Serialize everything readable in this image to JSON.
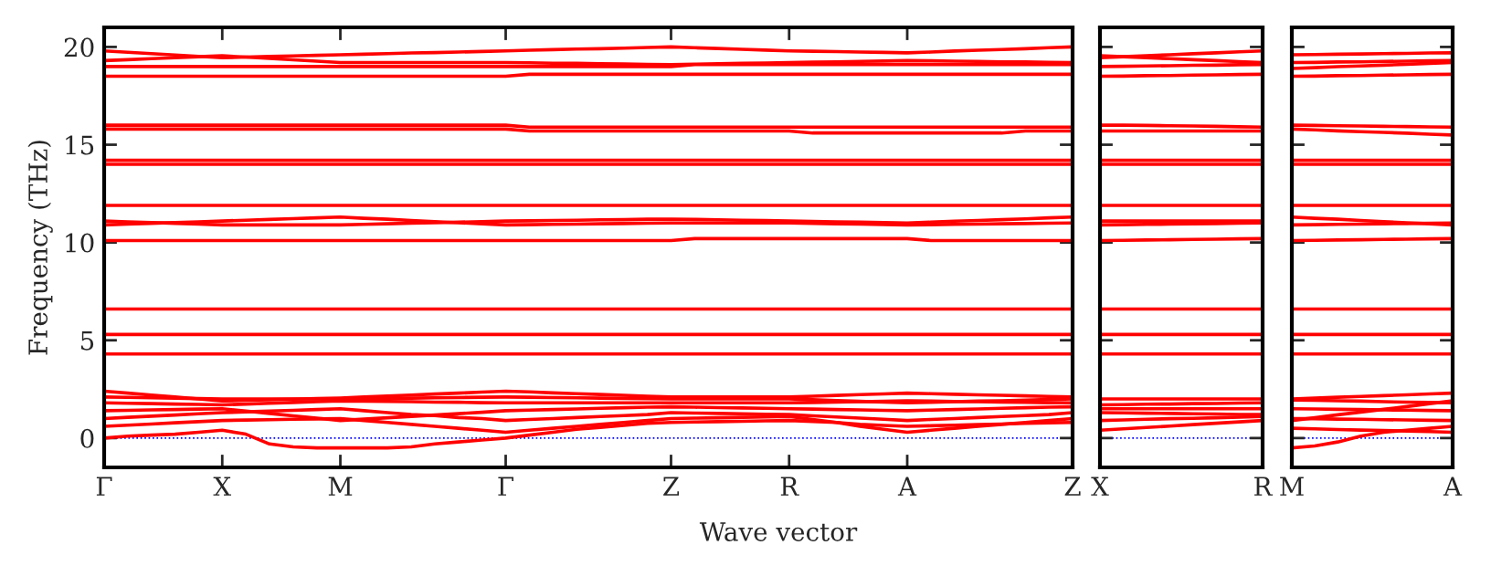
{
  "chart_data": [
    {
      "type": "line",
      "ylabel": "Frequency (THz)",
      "xlabel": "Wave vector",
      "categories": [
        "Γ",
        null,
        null,
        null,
        null,
        "X",
        null,
        null,
        null,
        null,
        "M",
        null,
        null,
        null,
        null,
        null,
        null,
        "Γ",
        null,
        null,
        null,
        null,
        null,
        null,
        "Z",
        null,
        null,
        null,
        null,
        "R",
        null,
        null,
        null,
        null,
        "A",
        null,
        null,
        null,
        null,
        null,
        null,
        "Z"
      ],
      "ylim": [
        -1.5,
        21
      ],
      "yticks": [
        0,
        5,
        10,
        15,
        20
      ],
      "ref_lines": [
        {
          "axis": "y",
          "value": 0,
          "color": "#0000ff",
          "line_style": "dotted"
        }
      ],
      "series": [
        {
          "color": "#ff0000",
          "values": [
            0,
            0.1,
            0.15,
            0.2,
            0.3,
            0.4,
            0.2,
            -0.3,
            -0.45,
            -0.5,
            -0.5,
            -0.5,
            -0.5,
            -0.45,
            -0.3,
            -0.2,
            -0.1,
            0,
            0.15,
            0.3,
            0.45,
            0.55,
            0.65,
            0.75,
            0.8,
            0.82,
            0.84,
            0.86,
            0.88,
            0.9,
            0.85,
            0.8,
            0.7,
            0.65,
            0.6,
            0.63,
            0.66,
            0.69,
            0.72,
            0.75,
            0.78,
            0.8
          ]
        },
        {
          "color": "#ff0000",
          "values": [
            0.6,
            0.66,
            0.72,
            0.78,
            0.84,
            0.9,
            0.92,
            0.94,
            0.96,
            0.98,
            1.0,
            0.9,
            0.8,
            0.7,
            0.6,
            0.5,
            0.4,
            0.3,
            0.4,
            0.5,
            0.6,
            0.7,
            0.8,
            0.9,
            1.0,
            1.02,
            1.04,
            1.06,
            1.08,
            1.1,
            0.95,
            0.8,
            0.6,
            0.45,
            0.3,
            0.4,
            0.5,
            0.6,
            0.7,
            0.8,
            0.9,
            1.0
          ]
        },
        {
          "color": "#ff0000",
          "values": [
            1.0,
            1.06,
            1.12,
            1.18,
            1.24,
            1.3,
            1.34,
            1.38,
            1.42,
            1.46,
            1.5,
            1.4,
            1.3,
            1.2,
            1.15,
            1.05,
            1.0,
            0.9,
            0.95,
            1.0,
            1.05,
            1.1,
            1.15,
            1.2,
            1.3,
            1.28,
            1.26,
            1.24,
            1.22,
            1.2,
            1.14,
            1.08,
            1.02,
            0.96,
            0.9,
            0.95,
            1.0,
            1.05,
            1.1,
            1.15,
            1.2,
            1.3
          ]
        },
        {
          "color": "#ff0000",
          "values": [
            1.4,
            1.42,
            1.44,
            1.46,
            1.48,
            1.5,
            1.38,
            1.26,
            1.14,
            1.02,
            0.9,
            0.97,
            1.04,
            1.11,
            1.18,
            1.25,
            1.32,
            1.4,
            1.43,
            1.46,
            1.49,
            1.52,
            1.55,
            1.58,
            1.6,
            1.58,
            1.56,
            1.54,
            1.52,
            1.5,
            1.48,
            1.46,
            1.44,
            1.42,
            1.4,
            1.43,
            1.46,
            1.49,
            1.52,
            1.55,
            1.58,
            1.6
          ]
        },
        {
          "color": "#ff0000",
          "values": [
            1.8,
            1.78,
            1.76,
            1.74,
            1.72,
            1.7,
            1.74,
            1.78,
            1.82,
            1.86,
            1.9,
            1.89,
            1.87,
            1.86,
            1.84,
            1.83,
            1.81,
            1.8,
            1.8,
            1.8,
            1.8,
            1.8,
            1.8,
            1.8,
            1.8,
            1.8,
            1.8,
            1.8,
            1.8,
            1.8,
            1.82,
            1.84,
            1.86,
            1.88,
            1.9,
            1.89,
            1.87,
            1.86,
            1.84,
            1.83,
            1.81,
            1.8
          ]
        },
        {
          "color": "#ff0000",
          "values": [
            2.1,
            2.08,
            2.06,
            2.04,
            2.02,
            2.0,
            2.0,
            2.0,
            2.0,
            2.0,
            2.0,
            2.01,
            2.03,
            2.04,
            2.06,
            2.07,
            2.09,
            2.1,
            2.09,
            2.07,
            2.06,
            2.04,
            2.03,
            2.01,
            2.0,
            2.0,
            2.0,
            2.0,
            2.0,
            2.0,
            1.96,
            1.92,
            1.88,
            1.84,
            1.8,
            1.83,
            1.86,
            1.89,
            1.91,
            1.94,
            1.97,
            2.0
          ]
        },
        {
          "color": "#ff0000",
          "values": [
            2.4,
            2.3,
            2.2,
            2.1,
            2.0,
            1.9,
            1.93,
            1.96,
            1.99,
            2.02,
            2.05,
            2.1,
            2.15,
            2.2,
            2.25,
            2.3,
            2.35,
            2.4,
            2.36,
            2.31,
            2.27,
            2.23,
            2.19,
            2.14,
            2.1,
            2.1,
            2.1,
            2.1,
            2.1,
            2.1,
            2.14,
            2.18,
            2.22,
            2.26,
            2.3,
            2.27,
            2.24,
            2.21,
            2.19,
            2.16,
            2.13,
            2.1
          ]
        },
        {
          "color": "#ff0000",
          "values": [
            4.3,
            4.3,
            4.3,
            4.3,
            4.3,
            4.3,
            4.3,
            4.3,
            4.3,
            4.3,
            4.3,
            4.3,
            4.3,
            4.3,
            4.3,
            4.3,
            4.3,
            4.3,
            4.3,
            4.3,
            4.3,
            4.3,
            4.3,
            4.3,
            4.3,
            4.3,
            4.3,
            4.3,
            4.3,
            4.3,
            4.3,
            4.3,
            4.3,
            4.3,
            4.3,
            4.3,
            4.3,
            4.3,
            4.3,
            4.3,
            4.3,
            4.3
          ]
        },
        {
          "color": "#ff0000",
          "values": [
            5.3,
            5.3,
            5.3,
            5.3,
            5.3,
            5.3,
            5.3,
            5.3,
            5.3,
            5.3,
            5.3,
            5.3,
            5.3,
            5.3,
            5.3,
            5.3,
            5.3,
            5.3,
            5.3,
            5.3,
            5.3,
            5.3,
            5.3,
            5.3,
            5.3,
            5.3,
            5.3,
            5.3,
            5.3,
            5.3,
            5.3,
            5.3,
            5.3,
            5.3,
            5.3,
            5.3,
            5.3,
            5.3,
            5.3,
            5.3,
            5.3,
            5.3
          ]
        },
        {
          "color": "#ff0000",
          "values": [
            6.6,
            6.6,
            6.6,
            6.6,
            6.6,
            6.6,
            6.6,
            6.6,
            6.6,
            6.6,
            6.6,
            6.6,
            6.6,
            6.6,
            6.6,
            6.6,
            6.6,
            6.6,
            6.6,
            6.6,
            6.6,
            6.6,
            6.6,
            6.6,
            6.6,
            6.6,
            6.6,
            6.6,
            6.6,
            6.6,
            6.6,
            6.6,
            6.6,
            6.6,
            6.6,
            6.6,
            6.6,
            6.6,
            6.6,
            6.6,
            6.6,
            6.6
          ]
        },
        {
          "color": "#ff0000",
          "values": [
            10.1,
            10.1,
            10.1,
            10.1,
            10.1,
            10.1,
            10.1,
            10.1,
            10.1,
            10.1,
            10.1,
            10.1,
            10.1,
            10.1,
            10.1,
            10.1,
            10.1,
            10.1,
            10.1,
            10.1,
            10.1,
            10.1,
            10.1,
            10.1,
            10.1,
            10.2,
            10.2,
            10.2,
            10.2,
            10.2,
            10.2,
            10.2,
            10.2,
            10.2,
            10.2,
            10.1,
            10.1,
            10.1,
            10.1,
            10.1,
            10.1,
            10.1
          ]
        },
        {
          "color": "#ff0000",
          "values": [
            10.9,
            10.94,
            10.98,
            11.02,
            11.06,
            11.1,
            11.14,
            11.18,
            11.22,
            11.26,
            11.3,
            11.24,
            11.19,
            11.13,
            11.07,
            11.01,
            10.96,
            10.9,
            10.91,
            10.93,
            10.94,
            10.96,
            10.97,
            10.99,
            11.0,
            11.0,
            11.0,
            11.0,
            11.0,
            11.0,
            10.98,
            10.96,
            10.94,
            10.92,
            10.9,
            10.91,
            10.93,
            10.94,
            10.96,
            10.97,
            10.99,
            11.0
          ]
        },
        {
          "color": "#ff0000",
          "values": [
            11.1,
            11.06,
            11.02,
            10.98,
            10.94,
            10.9,
            10.9,
            10.9,
            10.9,
            10.9,
            10.9,
            10.93,
            10.96,
            10.99,
            11.01,
            11.04,
            11.07,
            11.1,
            11.11,
            11.13,
            11.14,
            11.16,
            11.17,
            11.19,
            11.2,
            11.18,
            11.16,
            11.14,
            11.12,
            11.1,
            11.08,
            11.06,
            11.04,
            11.02,
            11.0,
            11.04,
            11.09,
            11.13,
            11.17,
            11.21,
            11.26,
            11.3
          ]
        },
        {
          "color": "#ff0000",
          "values": [
            11.9,
            11.9,
            11.9,
            11.9,
            11.9,
            11.9,
            11.9,
            11.9,
            11.9,
            11.9,
            11.9,
            11.9,
            11.9,
            11.9,
            11.9,
            11.9,
            11.9,
            11.9,
            11.9,
            11.9,
            11.9,
            11.9,
            11.9,
            11.9,
            11.9,
            11.9,
            11.9,
            11.9,
            11.9,
            11.9,
            11.9,
            11.9,
            11.9,
            11.9,
            11.9,
            11.9,
            11.9,
            11.9,
            11.9,
            11.9,
            11.9,
            11.9
          ]
        },
        {
          "color": "#ff0000",
          "values": [
            14.0,
            14.0,
            14.0,
            14.0,
            14.0,
            14.0,
            14.0,
            14.0,
            14.0,
            14.0,
            14.0,
            14.0,
            14.0,
            14.0,
            14.0,
            14.0,
            14.0,
            14.0,
            14.0,
            14.0,
            14.0,
            14.0,
            14.0,
            14.0,
            14.0,
            14.0,
            14.0,
            14.0,
            14.0,
            14.0,
            14.0,
            14.0,
            14.0,
            14.0,
            14.0,
            14.0,
            14.0,
            14.0,
            14.0,
            14.0,
            14.0,
            14.0
          ]
        },
        {
          "color": "#ff0000",
          "values": [
            14.2,
            14.2,
            14.2,
            14.2,
            14.2,
            14.2,
            14.2,
            14.2,
            14.2,
            14.2,
            14.2,
            14.2,
            14.2,
            14.2,
            14.2,
            14.2,
            14.2,
            14.2,
            14.2,
            14.2,
            14.2,
            14.2,
            14.2,
            14.2,
            14.2,
            14.2,
            14.2,
            14.2,
            14.2,
            14.2,
            14.2,
            14.2,
            14.2,
            14.2,
            14.2,
            14.2,
            14.2,
            14.2,
            14.2,
            14.2,
            14.2,
            14.2
          ]
        },
        {
          "color": "#ff0000",
          "values": [
            15.8,
            15.8,
            15.8,
            15.8,
            15.8,
            15.8,
            15.8,
            15.8,
            15.8,
            15.8,
            15.8,
            15.8,
            15.8,
            15.8,
            15.8,
            15.8,
            15.8,
            15.8,
            15.7,
            15.7,
            15.7,
            15.7,
            15.7,
            15.7,
            15.7,
            15.7,
            15.7,
            15.7,
            15.7,
            15.7,
            15.6,
            15.6,
            15.6,
            15.6,
            15.6,
            15.6,
            15.6,
            15.6,
            15.6,
            15.7,
            15.7,
            15.7
          ]
        },
        {
          "color": "#ff0000",
          "values": [
            16.0,
            16.0,
            16.0,
            16.0,
            16.0,
            16.0,
            16.0,
            16.0,
            16.0,
            16.0,
            16.0,
            16.0,
            16.0,
            16.0,
            16.0,
            16.0,
            16.0,
            16.0,
            15.9,
            15.9,
            15.9,
            15.9,
            15.9,
            15.9,
            15.9,
            15.9,
            15.9,
            15.9,
            15.9,
            15.9,
            15.9,
            15.9,
            15.9,
            15.9,
            15.9,
            15.9,
            15.9,
            15.9,
            15.9,
            15.9,
            15.9,
            15.9
          ]
        },
        {
          "color": "#ff0000",
          "values": [
            18.5,
            18.5,
            18.5,
            18.5,
            18.5,
            18.5,
            18.5,
            18.5,
            18.5,
            18.5,
            18.5,
            18.5,
            18.5,
            18.5,
            18.5,
            18.5,
            18.5,
            18.5,
            18.6,
            18.6,
            18.6,
            18.6,
            18.6,
            18.6,
            18.6,
            18.6,
            18.6,
            18.6,
            18.6,
            18.6,
            18.6,
            18.6,
            18.6,
            18.6,
            18.6,
            18.6,
            18.6,
            18.6,
            18.6,
            18.6,
            18.6,
            18.6
          ]
        },
        {
          "color": "#ff0000",
          "values": [
            19.0,
            19.0,
            19.0,
            19.0,
            19.0,
            19.0,
            19.0,
            19.0,
            19.0,
            19.0,
            19.0,
            19.0,
            19.0,
            19.0,
            19.0,
            19.0,
            19.0,
            19.0,
            19.0,
            19.0,
            19.0,
            19.0,
            19.0,
            19.0,
            19.0,
            19.1,
            19.1,
            19.1,
            19.1,
            19.1,
            19.1,
            19.1,
            19.1,
            19.1,
            19.1,
            19.1,
            19.1,
            19.1,
            19.1,
            19.1,
            19.1,
            19.1
          ]
        },
        {
          "color": "#ff0000",
          "values": [
            19.3,
            19.35,
            19.4,
            19.45,
            19.5,
            19.55,
            19.48,
            19.41,
            19.34,
            19.27,
            19.2,
            19.2,
            19.2,
            19.2,
            19.2,
            19.2,
            19.2,
            19.2,
            19.19,
            19.17,
            19.16,
            19.14,
            19.13,
            19.11,
            19.1,
            19.12,
            19.14,
            19.16,
            19.18,
            19.2,
            19.22,
            19.24,
            19.26,
            19.28,
            19.3,
            19.29,
            19.27,
            19.26,
            19.24,
            19.23,
            19.21,
            19.2
          ]
        },
        {
          "color": "#ff0000",
          "values": [
            19.8,
            19.73,
            19.66,
            19.59,
            19.52,
            19.45,
            19.48,
            19.51,
            19.54,
            19.57,
            19.6,
            19.63,
            19.66,
            19.69,
            19.71,
            19.74,
            19.77,
            19.8,
            19.83,
            19.86,
            19.89,
            19.91,
            19.94,
            19.97,
            20.0,
            19.96,
            19.92,
            19.88,
            19.84,
            19.8,
            19.78,
            19.76,
            19.74,
            19.72,
            19.7,
            19.74,
            19.79,
            19.83,
            19.87,
            19.91,
            19.96,
            20.0
          ]
        }
      ]
    },
    {
      "type": "line",
      "categories": [
        "X",
        null,
        null,
        null,
        null,
        null,
        null,
        "R"
      ],
      "ylim": [
        -1.5,
        21
      ],
      "yticks": [
        0,
        5,
        10,
        15,
        20
      ],
      "tick_labels": "x",
      "ref_lines": [
        {
          "axis": "y",
          "value": 0,
          "color": "#0000ff",
          "line_style": "dotted"
        }
      ],
      "series": [
        {
          "color": "#ff0000",
          "values": [
            0.4,
            0.47,
            0.54,
            0.61,
            0.69,
            0.76,
            0.83,
            0.9
          ]
        },
        {
          "color": "#ff0000",
          "values": [
            0.9,
            0.93,
            0.96,
            0.99,
            1.01,
            1.04,
            1.07,
            1.1
          ]
        },
        {
          "color": "#ff0000",
          "values": [
            1.3,
            1.29,
            1.27,
            1.26,
            1.24,
            1.23,
            1.21,
            1.2
          ]
        },
        {
          "color": "#ff0000",
          "values": [
            1.5,
            1.5,
            1.5,
            1.5,
            1.5,
            1.5,
            1.5,
            1.5
          ]
        },
        {
          "color": "#ff0000",
          "values": [
            1.7,
            1.71,
            1.73,
            1.74,
            1.76,
            1.77,
            1.79,
            1.8
          ]
        },
        {
          "color": "#ff0000",
          "values": [
            2.0,
            2.0,
            2.0,
            2.0,
            2.0,
            2.0,
            2.0,
            2.0
          ]
        },
        {
          "color": "#ff0000",
          "values": [
            4.3,
            4.3,
            4.3,
            4.3,
            4.3,
            4.3,
            4.3,
            4.3
          ]
        },
        {
          "color": "#ff0000",
          "values": [
            5.3,
            5.3,
            5.3,
            5.3,
            5.3,
            5.3,
            5.3,
            5.3
          ]
        },
        {
          "color": "#ff0000",
          "values": [
            6.6,
            6.6,
            6.6,
            6.6,
            6.6,
            6.6,
            6.6,
            6.6
          ]
        },
        {
          "color": "#ff0000",
          "values": [
            10.1,
            10.11,
            10.13,
            10.14,
            10.16,
            10.17,
            10.19,
            10.2
          ]
        },
        {
          "color": "#ff0000",
          "values": [
            10.9,
            10.91,
            10.93,
            10.94,
            10.96,
            10.97,
            10.99,
            11.0
          ]
        },
        {
          "color": "#ff0000",
          "values": [
            11.1,
            11.1,
            11.1,
            11.1,
            11.1,
            11.1,
            11.1,
            11.1
          ]
        },
        {
          "color": "#ff0000",
          "values": [
            11.9,
            11.9,
            11.9,
            11.9,
            11.9,
            11.9,
            11.9,
            11.9
          ]
        },
        {
          "color": "#ff0000",
          "values": [
            14.0,
            14.0,
            14.0,
            14.0,
            14.0,
            14.0,
            14.0,
            14.0
          ]
        },
        {
          "color": "#ff0000",
          "values": [
            14.2,
            14.2,
            14.2,
            14.2,
            14.2,
            14.2,
            14.2,
            14.2
          ]
        },
        {
          "color": "#ff0000",
          "values": [
            15.7,
            15.7,
            15.7,
            15.7,
            15.7,
            15.7,
            15.7,
            15.7
          ]
        },
        {
          "color": "#ff0000",
          "values": [
            16.0,
            16.0,
            15.99,
            15.97,
            15.96,
            15.94,
            15.92,
            15.9
          ]
        },
        {
          "color": "#ff0000",
          "values": [
            18.5,
            18.51,
            18.53,
            18.54,
            18.56,
            18.57,
            18.59,
            18.6
          ]
        },
        {
          "color": "#ff0000",
          "values": [
            19.0,
            19.01,
            19.03,
            19.04,
            19.06,
            19.07,
            19.09,
            19.1
          ]
        },
        {
          "color": "#ff0000",
          "values": [
            19.55,
            19.5,
            19.45,
            19.4,
            19.35,
            19.3,
            19.25,
            19.2
          ]
        },
        {
          "color": "#ff0000",
          "values": [
            19.45,
            19.5,
            19.55,
            19.6,
            19.65,
            19.7,
            19.75,
            19.8
          ]
        }
      ]
    },
    {
      "type": "line",
      "categories": [
        "M",
        null,
        null,
        null,
        null,
        null,
        null,
        "A"
      ],
      "ylim": [
        -1.5,
        21
      ],
      "yticks": [
        0,
        5,
        10,
        15,
        20
      ],
      "tick_labels": "x",
      "ref_lines": [
        {
          "axis": "y",
          "value": 0,
          "color": "#0000ff",
          "line_style": "dotted"
        }
      ],
      "series": [
        {
          "color": "#ff0000",
          "values": [
            -0.5,
            -0.4,
            -0.2,
            0.1,
            0.3,
            0.4,
            0.5,
            0.6
          ]
        },
        {
          "color": "#ff0000",
          "values": [
            0.5,
            0.47,
            0.44,
            0.41,
            0.39,
            0.36,
            0.33,
            0.3
          ]
        },
        {
          "color": "#ff0000",
          "values": [
            1.0,
            0.99,
            0.97,
            0.96,
            0.94,
            0.93,
            0.91,
            0.9
          ]
        },
        {
          "color": "#ff0000",
          "values": [
            1.5,
            1.49,
            1.47,
            1.46,
            1.44,
            1.43,
            1.41,
            1.4
          ]
        },
        {
          "color": "#ff0000",
          "values": [
            0.9,
            1.04,
            1.19,
            1.33,
            1.47,
            1.61,
            1.76,
            1.9
          ]
        },
        {
          "color": "#ff0000",
          "values": [
            1.95,
            1.93,
            1.91,
            1.89,
            1.86,
            1.84,
            1.82,
            1.8
          ]
        },
        {
          "color": "#ff0000",
          "values": [
            2.0,
            2.04,
            2.09,
            2.13,
            2.17,
            2.21,
            2.26,
            2.3
          ]
        },
        {
          "color": "#ff0000",
          "values": [
            4.3,
            4.3,
            4.3,
            4.3,
            4.3,
            4.3,
            4.3,
            4.3
          ]
        },
        {
          "color": "#ff0000",
          "values": [
            5.3,
            5.3,
            5.3,
            5.3,
            5.3,
            5.3,
            5.3,
            5.3
          ]
        },
        {
          "color": "#ff0000",
          "values": [
            6.6,
            6.6,
            6.6,
            6.6,
            6.6,
            6.6,
            6.6,
            6.6
          ]
        },
        {
          "color": "#ff0000",
          "values": [
            10.1,
            10.11,
            10.13,
            10.14,
            10.16,
            10.17,
            10.19,
            10.2
          ]
        },
        {
          "color": "#ff0000",
          "values": [
            11.3,
            11.24,
            11.19,
            11.13,
            11.07,
            11.01,
            10.96,
            10.9
          ]
        },
        {
          "color": "#ff0000",
          "values": [
            10.9,
            10.91,
            10.93,
            10.94,
            10.96,
            10.97,
            10.99,
            11.0
          ]
        },
        {
          "color": "#ff0000",
          "values": [
            11.9,
            11.9,
            11.9,
            11.9,
            11.9,
            11.9,
            11.9,
            11.9
          ]
        },
        {
          "color": "#ff0000",
          "values": [
            14.0,
            14.0,
            14.0,
            14.0,
            14.0,
            14.0,
            14.0,
            14.0
          ]
        },
        {
          "color": "#ff0000",
          "values": [
            14.2,
            14.2,
            14.2,
            14.2,
            14.2,
            14.2,
            14.2,
            14.2
          ]
        },
        {
          "color": "#ff0000",
          "values": [
            15.8,
            15.76,
            15.71,
            15.67,
            15.63,
            15.59,
            15.54,
            15.5
          ]
        },
        {
          "color": "#ff0000",
          "values": [
            16.0,
            15.99,
            15.97,
            15.96,
            15.94,
            15.93,
            15.91,
            15.9
          ]
        },
        {
          "color": "#ff0000",
          "values": [
            18.5,
            18.51,
            18.53,
            18.54,
            18.56,
            18.57,
            18.59,
            18.6
          ]
        },
        {
          "color": "#ff0000",
          "values": [
            18.9,
            18.94,
            18.99,
            19.03,
            19.07,
            19.11,
            19.16,
            19.2
          ]
        },
        {
          "color": "#ff0000",
          "values": [
            19.2,
            19.21,
            19.23,
            19.24,
            19.26,
            19.27,
            19.29,
            19.3
          ]
        },
        {
          "color": "#ff0000",
          "values": [
            19.6,
            19.61,
            19.63,
            19.64,
            19.66,
            19.67,
            19.69,
            19.7
          ]
        }
      ]
    }
  ]
}
